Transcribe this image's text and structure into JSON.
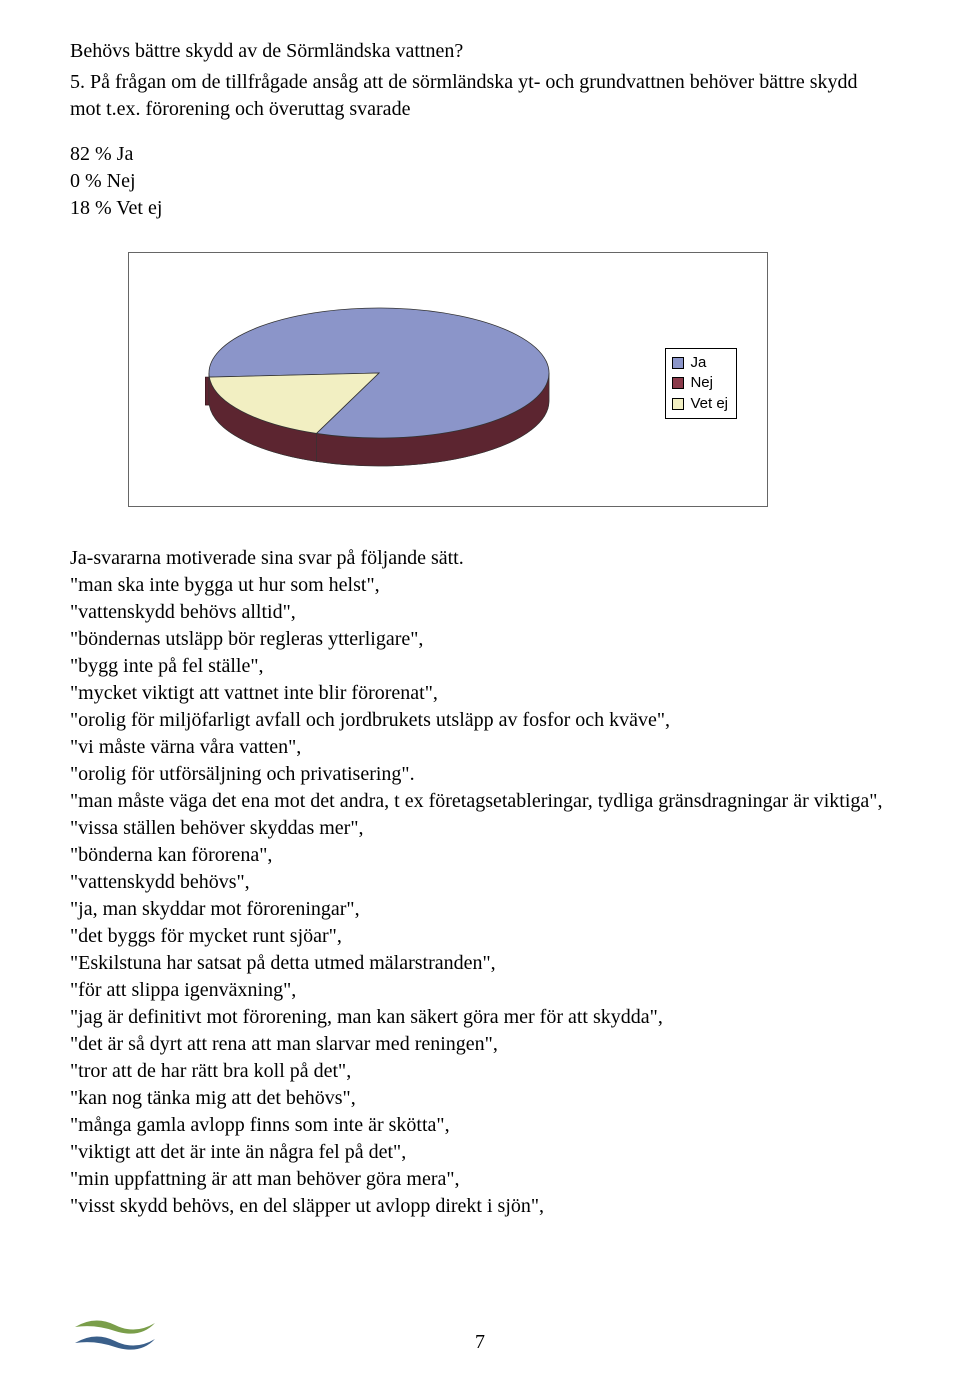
{
  "heading": "Behövs bättre skydd av de Sörmländska vattnen?",
  "question": "5. På frågan om de tillfrågade ansåg att de sörmländska yt- och grundvattnen behöver bättre skydd mot t.ex. förorening och överuttag svarade",
  "results": {
    "lines": [
      "82 % Ja",
      " 0 % Nej",
      "18 %  Vet ej"
    ]
  },
  "chart": {
    "type": "pie",
    "background_color": "#ffffff",
    "border_color": "#666666",
    "slices": [
      {
        "label": "Ja",
        "value": 82,
        "color": "#8b95c9",
        "side_color": "#6370a8"
      },
      {
        "label": "Nej",
        "value": 0,
        "color": "#8a3a4a",
        "side_color": "#5c2530"
      },
      {
        "label": "Vet ej",
        "value": 18,
        "color": "#f2efc2",
        "side_color": "#d8d49a"
      }
    ],
    "legend": {
      "items": [
        {
          "swatch": "#8b95c9",
          "label": "Ja"
        },
        {
          "swatch": "#8a3a4a",
          "label": "Nej"
        },
        {
          "swatch": "#f2efc2",
          "label": "Vet ej"
        }
      ],
      "font_family": "Arial",
      "font_size": 15
    }
  },
  "response_intro": "Ja-svararna motiverade sina svar på följande sätt.",
  "quotes": [
    "\"man ska inte bygga ut hur som helst\",",
    "\"vattenskydd behövs alltid\",",
    "\"böndernas utsläpp bör regleras ytterligare\",",
    "\"bygg inte på fel ställe\",",
    "\"mycket viktigt att vattnet inte blir förorenat\",",
    "\"orolig för miljöfarligt avfall och jordbrukets utsläpp av fosfor och kväve\",",
    "\"vi måste värna våra vatten\",",
    "\"orolig för utförsäljning och privatisering\".",
    "\"man måste väga det ena mot det andra, t ex företagsetableringar, tydliga gränsdragningar är viktiga\",",
    "\"vissa ställen behöver skyddas mer\",",
    "\"bönderna kan förorena\",",
    "\"vattenskydd behövs\",",
    "\"ja, man skyddar mot föroreningar\",",
    "\"det byggs för mycket runt sjöar\",",
    "\"Eskilstuna har satsat på detta utmed mälarstranden\",",
    "\"för att slippa igenväxning\",",
    "\"jag är definitivt mot förorening, man kan säkert göra mer för att skydda\",",
    "\"det är så dyrt att rena att man slarvar med reningen\",",
    "\"tror att de har rätt bra koll på det\",",
    "\"kan nog tänka mig att det behövs\",",
    "\"många gamla avlopp finns som inte är skötta\",",
    "\"viktigt att det är inte än några fel på det\",",
    " \"min uppfattning är att man behöver göra mera\",",
    "\"visst skydd behövs, en del släpper ut avlopp direkt i sjön\","
  ],
  "page_number": "7",
  "logo_colors": {
    "top": "#7a9e4a",
    "bottom": "#3a5f8a"
  }
}
